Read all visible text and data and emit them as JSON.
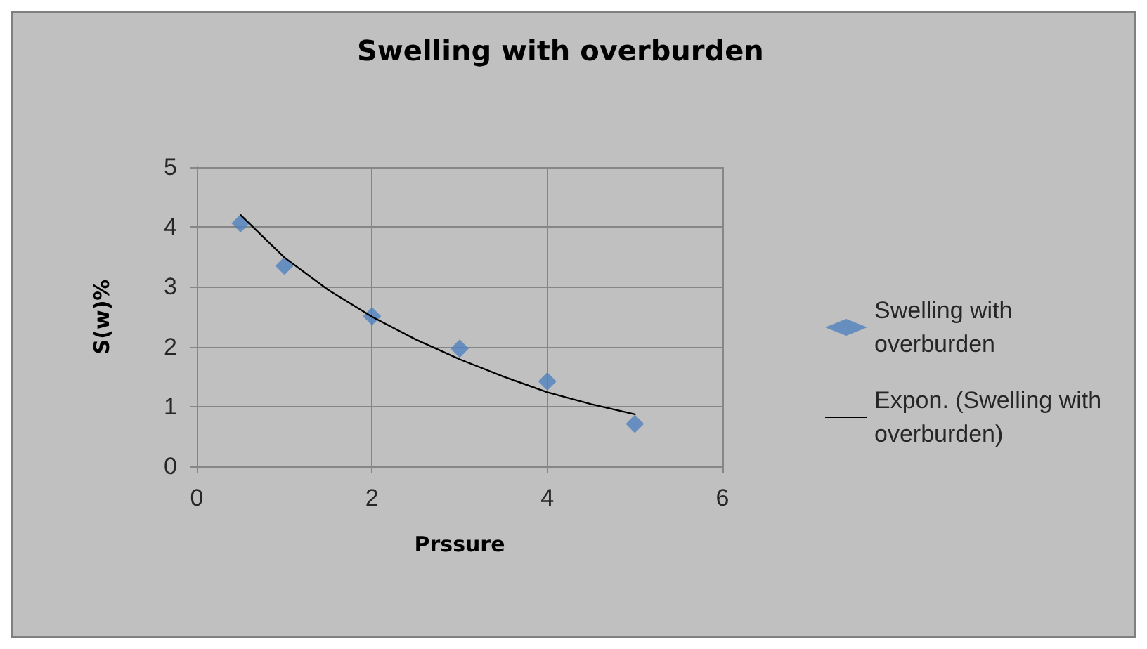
{
  "chart_data": {
    "type": "scatter",
    "title": "Swelling with overburden",
    "xlabel": "Prssure",
    "ylabel": "S(w)%",
    "xlim": [
      0,
      6
    ],
    "xticks": [
      0,
      2,
      4,
      6
    ],
    "ylim": [
      0,
      5
    ],
    "yticks": [
      0,
      1,
      2,
      3,
      4,
      5
    ],
    "grid": true,
    "legend": "right",
    "series": [
      {
        "name": "Swelling with overburden",
        "marker": "diamond",
        "color": "#4f81bd",
        "x": [
          0.5,
          1,
          2,
          3,
          4,
          5
        ],
        "values": [
          4.06,
          3.35,
          2.51,
          1.97,
          1.42,
          0.71
        ]
      },
      {
        "name": "Expon. (Swelling with overburden)",
        "type": "line",
        "marker": "none",
        "line_style": "solid",
        "color": "#000000",
        "x": [
          0.5,
          1,
          1.5,
          2,
          2.5,
          3,
          3.5,
          4,
          4.5,
          5
        ],
        "values": [
          4.2,
          3.49,
          2.95,
          2.5,
          2.12,
          1.79,
          1.5,
          1.24,
          1.04,
          0.87
        ]
      }
    ]
  }
}
